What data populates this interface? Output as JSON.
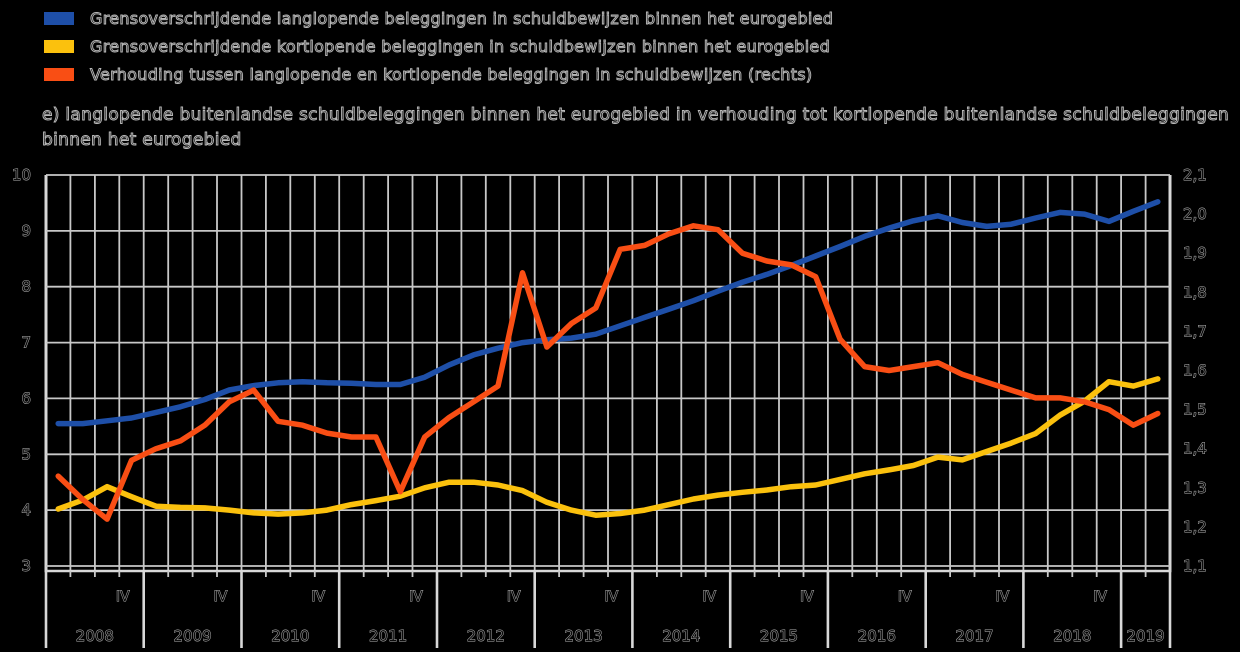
{
  "title": {
    "text": "e) langlopende buitenlandse schuldbeleggingen binnen het eurogebied in verhouding tot kortlopende buitenlandse schuldbeleggingen binnen het eurogebied"
  },
  "colors": {
    "background": "#000000",
    "gridline": "#c8c8c8",
    "text_outline": "#b9b9b9",
    "blue_series": "#1e4fa8",
    "yellow_series": "#fbc10d",
    "orange_series": "#f94e14"
  },
  "chart_data": {
    "type": "line",
    "x_unit": "quarter",
    "grid": true,
    "legend_position": "top-left",
    "years": [
      "2008",
      "2009",
      "2010",
      "2011",
      "2012",
      "2013",
      "2014",
      "2015",
      "2016",
      "2017",
      "2018",
      "2019"
    ],
    "quarters_per_year": [
      4,
      4,
      4,
      4,
      4,
      4,
      4,
      4,
      4,
      4,
      4,
      2
    ],
    "quarter_marker_label": "IV",
    "left_axis": {
      "min": 3,
      "max": 10,
      "tick_labels": [
        "10",
        "9",
        "8",
        "7",
        "6",
        "5",
        "4",
        "3"
      ]
    },
    "right_axis": {
      "min": 1.1,
      "max": 2.1,
      "tick_labels": [
        "2,1",
        "2,0",
        "1,9",
        "1,8",
        "1,7",
        "1,6",
        "1,5",
        "1,4",
        "1,3",
        "1,2",
        "1,1"
      ]
    },
    "series": [
      {
        "name": "Grensoverschrijdende langlopende beleggingen in schuldbewijzen binnen het eurogebied",
        "axis": "left",
        "color": "#1e4fa8",
        "values": [
          5.55,
          5.55,
          5.6,
          5.65,
          5.75,
          5.85,
          5.98,
          6.15,
          6.23,
          6.28,
          6.3,
          6.28,
          6.27,
          6.25,
          6.25,
          6.38,
          6.6,
          6.78,
          6.9,
          7.0,
          7.05,
          7.08,
          7.15,
          7.3,
          7.45,
          7.6,
          7.75,
          7.92,
          8.08,
          8.22,
          8.38,
          8.55,
          8.72,
          8.9,
          9.05,
          9.18,
          9.27,
          9.15,
          9.08,
          9.12,
          9.23,
          9.33,
          9.3,
          9.17,
          9.35,
          9.52
        ]
      },
      {
        "name": "Grensoverschrijdende kortlopende beleggingen in schuldbewijzen binnen het eurogebied",
        "axis": "left",
        "color": "#fbc10d",
        "values": [
          4.02,
          4.18,
          4.42,
          4.24,
          4.07,
          4.05,
          4.04,
          4.0,
          3.95,
          3.93,
          3.95,
          4.0,
          4.1,
          4.17,
          4.25,
          4.4,
          4.5,
          4.5,
          4.45,
          4.35,
          4.14,
          4.0,
          3.91,
          3.94,
          4.0,
          4.1,
          4.2,
          4.27,
          4.32,
          4.36,
          4.42,
          4.45,
          4.55,
          4.65,
          4.72,
          4.8,
          4.95,
          4.9,
          5.05,
          5.2,
          5.37,
          5.7,
          5.95,
          6.3,
          6.22,
          6.35
        ]
      },
      {
        "name": "Verhouding tussen langlopende en kortlopende beleggingen in schuldbewijzen (rechts)",
        "axis": "right",
        "color": "#f94e14",
        "values": [
          1.33,
          1.27,
          1.22,
          1.37,
          1.4,
          1.42,
          1.46,
          1.52,
          1.55,
          1.47,
          1.46,
          1.44,
          1.43,
          1.43,
          1.29,
          1.43,
          1.48,
          1.52,
          1.56,
          1.85,
          1.66,
          1.72,
          1.76,
          1.91,
          1.92,
          1.95,
          1.97,
          1.96,
          1.9,
          1.88,
          1.87,
          1.84,
          1.68,
          1.61,
          1.6,
          1.61,
          1.62,
          1.59,
          1.57,
          1.55,
          1.53,
          1.53,
          1.52,
          1.5,
          1.46,
          1.49
        ]
      }
    ]
  }
}
